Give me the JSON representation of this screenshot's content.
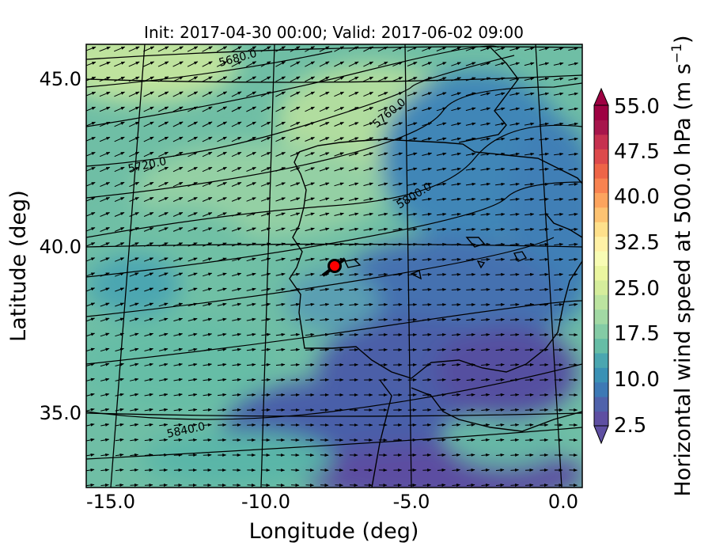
{
  "title": "Init: 2017-04-30 00:00; Valid: 2017-06-02 09:00",
  "axes": {
    "xlabel": "Longitude (deg)",
    "ylabel": "Latitude (deg)",
    "xticks": [
      "-15.0",
      "-10.0",
      "-5.0",
      "0.0"
    ],
    "yticks": [
      "45.0",
      "40.0",
      "35.0"
    ],
    "xrange": [
      -16,
      0.2
    ],
    "yrange": [
      32.7,
      46.0
    ]
  },
  "colorbar": {
    "label": "Horizontal wind speed at 500.0 hPa (m s",
    "label_exponent": "−1",
    "label_close": ")",
    "tick_labels": [
      "55.0",
      "47.5",
      "40.0",
      "32.5",
      "25.0",
      "17.5",
      "10.0",
      "2.5"
    ],
    "range": [
      2.5,
      55.0
    ],
    "colormap": "Spectral_r",
    "extend": "both",
    "colors": [
      "#5e4fa2",
      "#4f62ab",
      "#3d79b5",
      "#3a91b5",
      "#4aa6b0",
      "#66bda6",
      "#84cba5",
      "#a2d9a4",
      "#bce4a0",
      "#d5ed9c",
      "#ebf6a0",
      "#f8fcb4",
      "#fff1a6",
      "#fee08b",
      "#fdc372",
      "#fca45e",
      "#f88351",
      "#ee6547",
      "#dd4a4c",
      "#c63150",
      "#a7164c",
      "#9e0142"
    ]
  },
  "map": {
    "background_field": "Horizontal wind speed at 500 hPa",
    "contour_labels": [
      "5680.0",
      "5720.0",
      "5760.0",
      "5800.0",
      "5840.0"
    ],
    "marker": {
      "lon": -7.9,
      "lat": 39.3,
      "color": "#ff0000"
    },
    "vectors": "wind direction arrows at 500 hPa, mostly westerly to south-westerly"
  }
}
